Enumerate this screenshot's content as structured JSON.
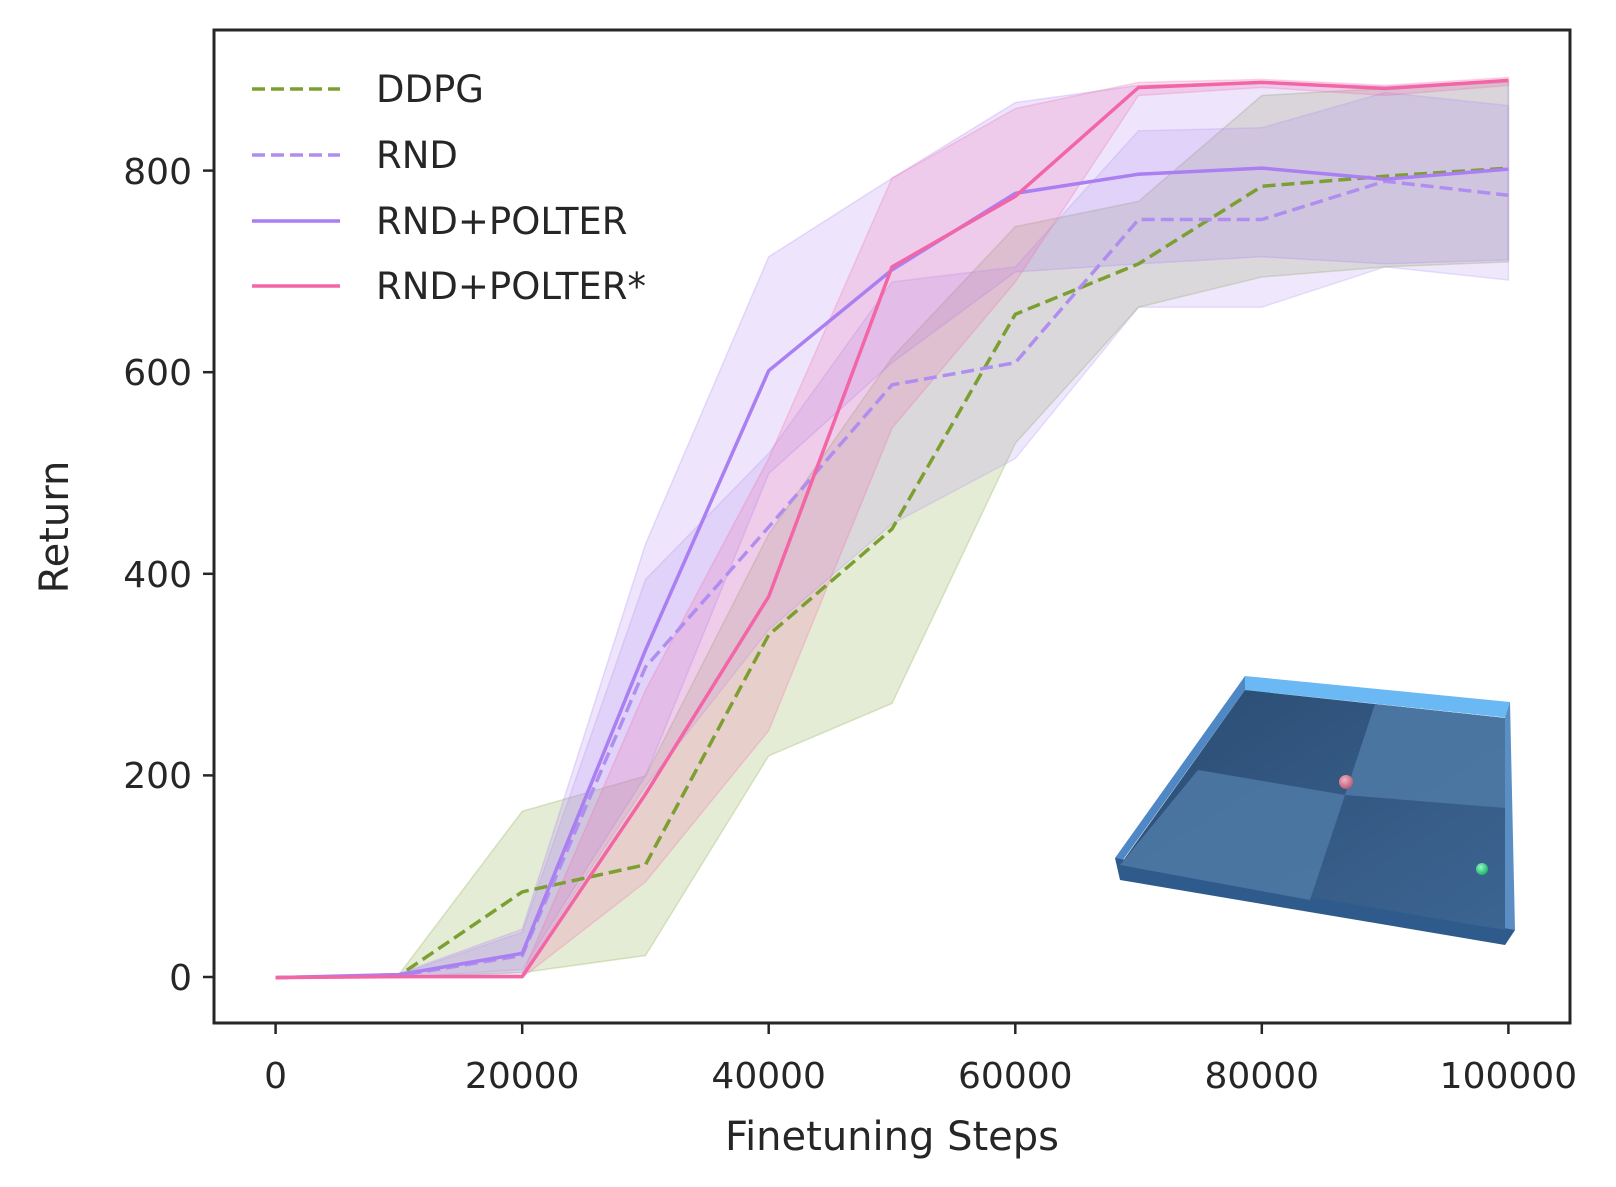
{
  "chart_data": {
    "type": "line",
    "xlabel": "Finetuning Steps",
    "ylabel": "Return",
    "xlim": [
      -5000,
      105000
    ],
    "ylim": [
      -45,
      940
    ],
    "x_ticks": [
      0,
      20000,
      40000,
      60000,
      80000,
      100000
    ],
    "x_tick_labels": [
      "0",
      "20000",
      "40000",
      "60000",
      "80000",
      "100000"
    ],
    "y_ticks": [
      0,
      200,
      400,
      600,
      800
    ],
    "y_tick_labels": [
      "0",
      "200",
      "400",
      "600",
      "800"
    ],
    "legend_position": "top-left",
    "x": [
      0,
      10000,
      20000,
      30000,
      40000,
      50000,
      60000,
      70000,
      80000,
      90000,
      100000
    ],
    "series": [
      {
        "name": "DDPG",
        "color": "#7c9f32",
        "style": "dashed",
        "values": [
          0,
          2,
          85,
          112,
          340,
          445,
          658,
          708,
          785,
          795,
          803
        ],
        "lower": [
          0,
          0,
          5,
          22,
          220,
          272,
          530,
          665,
          695,
          705,
          710
        ],
        "upper": [
          0,
          3,
          165,
          200,
          440,
          615,
          745,
          770,
          875,
          882,
          888
        ]
      },
      {
        "name": "RND",
        "color": "#b08ef0",
        "style": "dashed",
        "values": [
          0,
          2,
          22,
          308,
          447,
          588,
          610,
          752,
          752,
          790,
          776
        ],
        "lower": [
          0,
          0,
          5,
          190,
          345,
          450,
          515,
          665,
          665,
          705,
          692
        ],
        "upper": [
          0,
          3,
          45,
          395,
          520,
          690,
          705,
          840,
          843,
          878,
          865
        ]
      },
      {
        "name": "RND+POLTER",
        "color": "#a97ff2",
        "style": "solid",
        "values": [
          0,
          3,
          24,
          325,
          602,
          702,
          778,
          797,
          803,
          792,
          802
        ],
        "lower": [
          0,
          0,
          8,
          200,
          500,
          610,
          700,
          708,
          715,
          708,
          712
        ],
        "upper": [
          0,
          4,
          48,
          430,
          715,
          793,
          868,
          885,
          888,
          884,
          890
        ]
      },
      {
        "name": "RND+POLTER*",
        "color": "#f266a7",
        "style": "solid",
        "values": [
          0,
          1,
          1,
          182,
          378,
          705,
          775,
          883,
          888,
          882,
          890
        ],
        "lower": [
          0,
          0,
          0,
          95,
          245,
          545,
          690,
          875,
          883,
          875,
          885
        ],
        "upper": [
          0,
          2,
          3,
          285,
          515,
          793,
          862,
          888,
          891,
          885,
          893
        ]
      }
    ],
    "inset_image": "pointmass-maze-render"
  }
}
